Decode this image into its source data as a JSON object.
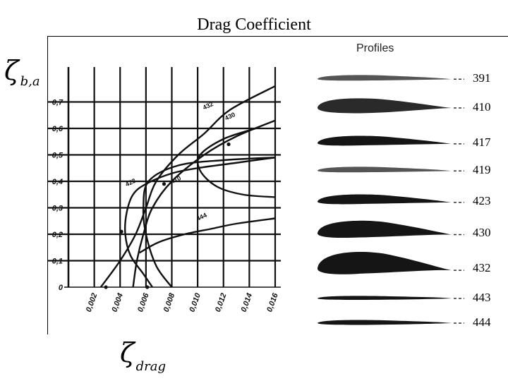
{
  "title": "Drag Coefficient",
  "ylabel_symbol": "ζ",
  "ylabel_sub": "b,a",
  "xlabel_symbol": "ζ",
  "xlabel_sub": "drag",
  "profiles_title": "Profiles",
  "profiles": [
    "391",
    "410",
    "417",
    "419",
    "423",
    "430",
    "432",
    "443",
    "444"
  ],
  "chart_data": {
    "type": "line",
    "xlim": [
      0,
      0.016
    ],
    "ylim": [
      0,
      0.8
    ],
    "x_ticks": [
      "0,002",
      "0,004",
      "0,006",
      "0,008",
      "0,010",
      "0,012",
      "0,014",
      "0,016"
    ],
    "y_ticks": [
      "0",
      "0,1",
      "0,2",
      "0,3",
      "0,4",
      "0,5",
      "0,6",
      "0,7"
    ],
    "grid": true,
    "series": [
      {
        "name": "432",
        "points": [
          [
            0.0025,
            0.0
          ],
          [
            0.004,
            0.1
          ],
          [
            0.0052,
            0.2
          ],
          [
            0.006,
            0.3
          ],
          [
            0.0068,
            0.4
          ],
          [
            0.0085,
            0.5
          ],
          [
            0.0105,
            0.58
          ],
          [
            0.0125,
            0.67
          ],
          [
            0.016,
            0.76
          ]
        ]
      },
      {
        "name": "430",
        "points": [
          [
            0.005,
            0.0
          ],
          [
            0.0053,
            0.1
          ],
          [
            0.0058,
            0.2
          ],
          [
            0.0065,
            0.3
          ],
          [
            0.008,
            0.4
          ],
          [
            0.0105,
            0.5
          ],
          [
            0.013,
            0.57
          ],
          [
            0.016,
            0.63
          ]
        ]
      },
      {
        "name": "410",
        "points": [
          [
            0.008,
            0.0
          ],
          [
            0.0068,
            0.08
          ],
          [
            0.006,
            0.2
          ],
          [
            0.0058,
            0.3
          ],
          [
            0.0062,
            0.4
          ],
          [
            0.0085,
            0.46
          ],
          [
            0.012,
            0.48
          ],
          [
            0.016,
            0.49
          ]
        ]
      },
      {
        "name": "423",
        "points": [
          [
            0.0065,
            0.0
          ],
          [
            0.0058,
            0.05
          ],
          [
            0.0048,
            0.12
          ],
          [
            0.0044,
            0.2
          ],
          [
            0.0045,
            0.28
          ],
          [
            0.005,
            0.35
          ],
          [
            0.006,
            0.39
          ],
          [
            0.008,
            0.43
          ],
          [
            0.01,
            0.45
          ],
          [
            0.013,
            0.47
          ],
          [
            0.016,
            0.49
          ]
        ]
      },
      {
        "name": "444",
        "points": [
          [
            0.0055,
            0.13
          ],
          [
            0.007,
            0.17
          ],
          [
            0.009,
            0.2
          ],
          [
            0.011,
            0.22
          ],
          [
            0.013,
            0.24
          ],
          [
            0.016,
            0.26
          ]
        ]
      },
      {
        "name": "",
        "points": [
          [
            0.016,
            0.34
          ],
          [
            0.0135,
            0.35
          ],
          [
            0.0115,
            0.38
          ],
          [
            0.0102,
            0.44
          ],
          [
            0.0102,
            0.5
          ],
          [
            0.012,
            0.56
          ],
          [
            0.0145,
            0.6
          ]
        ]
      }
    ],
    "curve_labels": [
      {
        "text": "432",
        "x": 0.0105,
        "y": 0.67
      },
      {
        "text": "430",
        "x": 0.0122,
        "y": 0.63
      },
      {
        "text": "410",
        "x": 0.008,
        "y": 0.39
      },
      {
        "text": "423",
        "x": 0.0045,
        "y": 0.38
      },
      {
        "text": "444",
        "x": 0.01,
        "y": 0.25
      }
    ]
  },
  "colors": {
    "ink": "#111111",
    "paper": "#ffffff",
    "profile_fill": "#151515",
    "profile_light": "#555555"
  }
}
